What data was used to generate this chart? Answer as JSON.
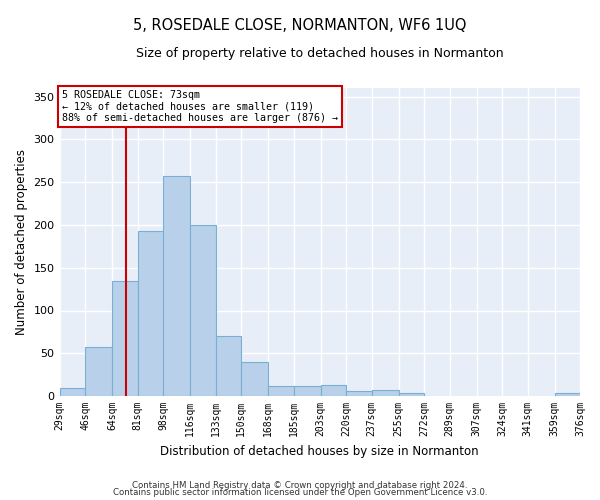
{
  "title": "5, ROSEDALE CLOSE, NORMANTON, WF6 1UQ",
  "subtitle": "Size of property relative to detached houses in Normanton",
  "xlabel": "Distribution of detached houses by size in Normanton",
  "ylabel": "Number of detached properties",
  "bar_color": "#b8d0ea",
  "bar_edge_color": "#7aafd4",
  "background_color": "#e8eef8",
  "grid_color": "#ffffff",
  "vline_x": 73,
  "vline_color": "#cc0000",
  "annotation_line1": "5 ROSEDALE CLOSE: 73sqm",
  "annotation_line2": "← 12% of detached houses are smaller (119)",
  "annotation_line3": "88% of semi-detached houses are larger (876) →",
  "annotation_box_color": "#cc0000",
  "bins": [
    29,
    46,
    64,
    81,
    98,
    116,
    133,
    150,
    168,
    185,
    203,
    220,
    237,
    255,
    272,
    289,
    307,
    324,
    341,
    359,
    376
  ],
  "counts": [
    9,
    57,
    135,
    193,
    257,
    200,
    70,
    40,
    12,
    12,
    13,
    6,
    7,
    4,
    0,
    0,
    0,
    0,
    0,
    3
  ],
  "ylim": [
    0,
    360
  ],
  "yticks": [
    0,
    50,
    100,
    150,
    200,
    250,
    300,
    350
  ],
  "footer_line1": "Contains HM Land Registry data © Crown copyright and database right 2024.",
  "footer_line2": "Contains public sector information licensed under the Open Government Licence v3.0."
}
